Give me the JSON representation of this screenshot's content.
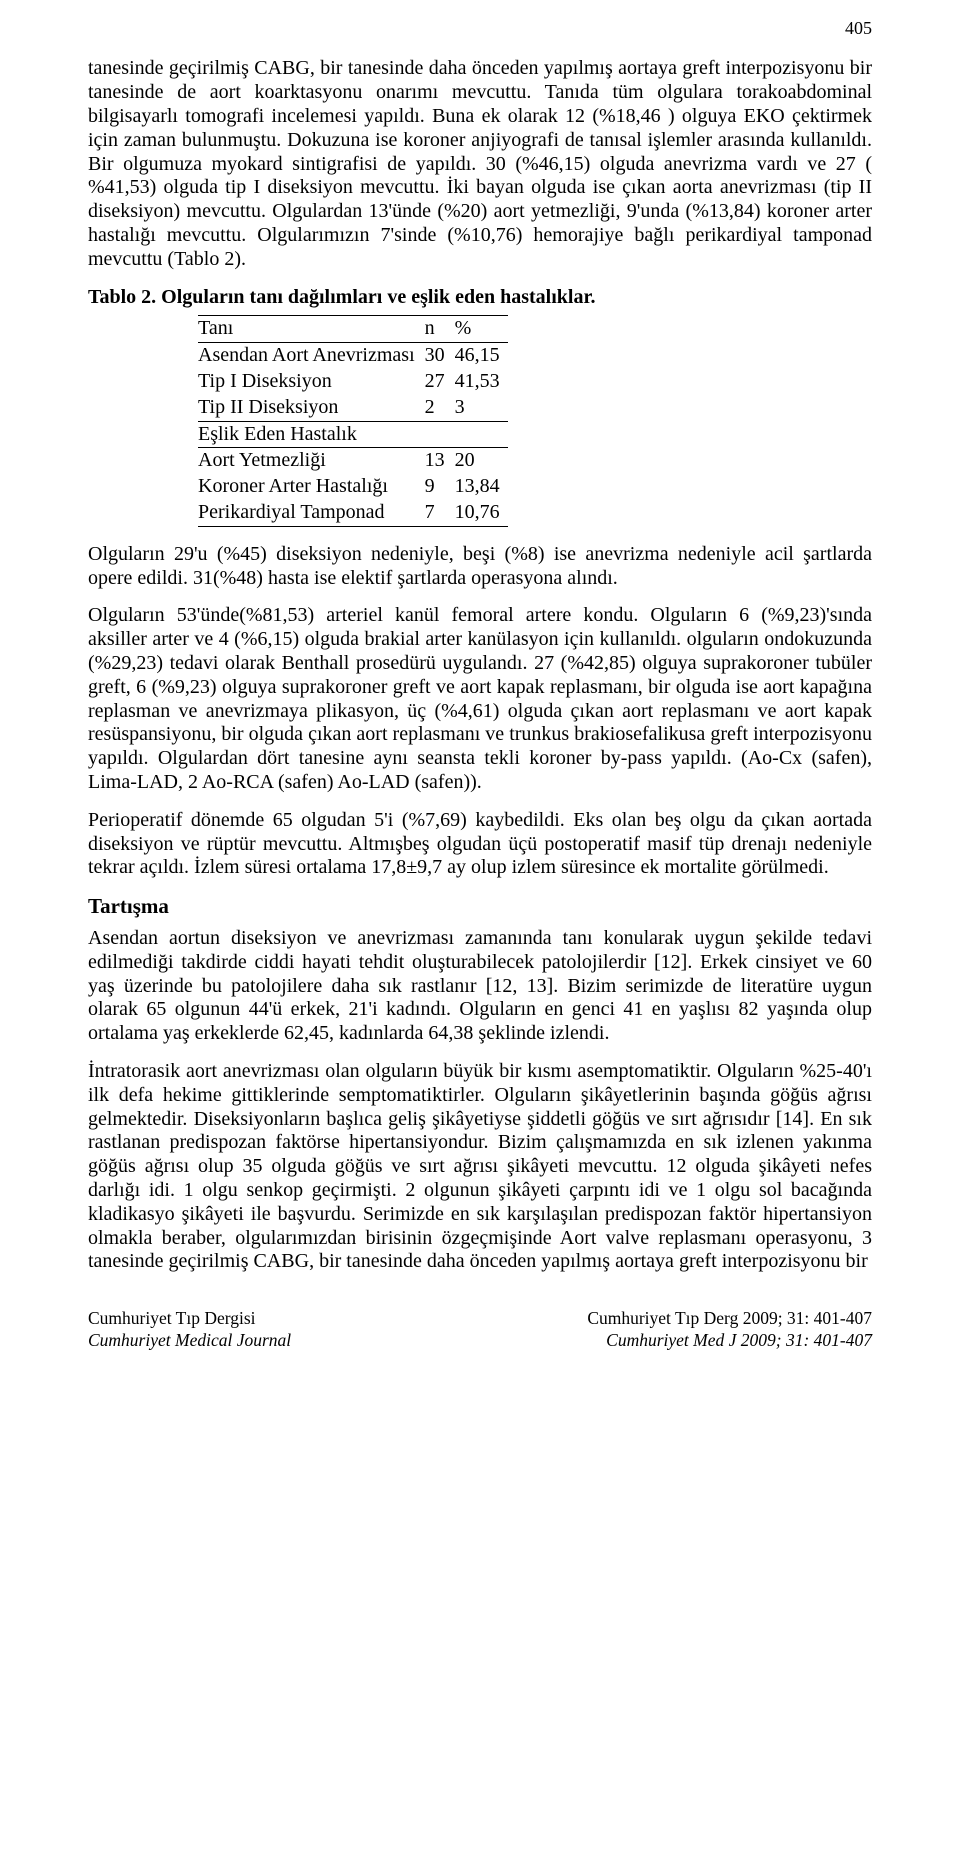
{
  "page_number": "405",
  "paragraphs": {
    "p1": "tanesinde geçirilmiş CABG, bir tanesinde daha önceden yapılmış aortaya greft interpozisyonu bir tanesinde de aort koarktasyonu onarımı mevcuttu. Tanıda tüm olgulara torakoabdominal bilgisayarlı tomografi incelemesi yapıldı. Buna ek olarak 12 (%18,46 ) olguya EKO çektirmek için zaman bulunmuştu. Dokuzuna ise koroner anjiyografi de tanısal işlemler arasında kullanıldı. Bir olgumuza myokard sintigrafisi de yapıldı. 30 (%46,15) olguda anevrizma vardı ve 27 ( %41,53) olguda tip I diseksiyon mevcuttu. İki bayan olguda ise çıkan aorta anevrizması (tip II diseksiyon) mevcuttu. Olgulardan 13'ünde (%20) aort yetmezliği, 9'unda (%13,84) koroner arter hastalığı mevcuttu. Olgularımızın 7'sinde (%10,76) hemorajiye bağlı perikardiyal tamponad mevcuttu (Tablo 2).",
    "p2": "Olguların 29'u (%45) diseksiyon nedeniyle, beşi (%8) ise anevrizma nedeniyle acil şartlarda opere edildi. 31(%48) hasta ise elektif şartlarda operasyona alındı.",
    "p3": "Olguların 53'ünde(%81,53) arteriel kanül femoral artere kondu. Olguların 6 (%9,23)'sında aksiller arter ve 4 (%6,15) olguda brakial arter kanülasyon için kullanıldı. olguların ondokuzunda (%29,23) tedavi olarak Benthall prosedürü uygulandı. 27 (%42,85) olguya suprakoroner tubüler greft, 6 (%9,23) olguya suprakoroner greft ve aort kapak replasmanı, bir olguda ise aort kapağına replasman ve anevrizmaya plikasyon, üç (%4,61) olguda çıkan aort replasmanı ve aort kapak resüspansiyonu, bir olguda çıkan aort replasmanı ve trunkus brakiosefalikusa greft interpozisyonu yapıldı. Olgulardan dört tanesine aynı seansta tekli koroner by-pass yapıldı. (Ao-Cx (safen), Lima-LAD, 2 Ao-RCA (safen) Ao-LAD (safen)).",
    "p4": "Perioperatif dönemde 65 olgudan 5'i (%7,69) kaybedildi. Eks olan beş olgu da çıkan aortada diseksiyon ve rüptür mevcuttu. Altmışbeş olgudan üçü postoperatif masif tüp drenajı nedeniyle tekrar açıldı. İzlem süresi ortalama 17,8±9,7 ay olup izlem süresince ek mortalite görülmedi.",
    "p5": "Asendan aortun diseksiyon ve anevrizması zamanında tanı konularak uygun şekilde tedavi edilmediği takdirde ciddi hayati tehdit oluşturabilecek patolojilerdir [12]. Erkek cinsiyet ve 60 yaş üzerinde bu patolojilere daha sık rastlanır [12, 13]. Bizim serimizde de literatüre uygun olarak 65 olgunun 44'ü erkek, 21'i kadındı. Olguların en genci 41 en yaşlısı 82 yaşında olup ortalama yaş erkeklerde 62,45, kadınlarda 64,38 şeklinde izlendi.",
    "p6": "İntratorasik aort anevrizması olan olguların büyük bir kısmı asemptomatiktir. Olguların %25-40'ı ilk defa hekime gittiklerinde semptomatiktirler. Olguların şikâyetlerinin başında göğüs ağrısı gelmektedir. Diseksiyonların başlıca geliş şikâyetiyse şiddetli göğüs ve sırt ağrısıdır [14]. En sık rastlanan predispozan faktörse hipertansiyondur. Bizim çalışmamızda en sık izlenen yakınma göğüs ağrısı olup 35 olguda göğüs ve sırt ağrısı şikâyeti mevcuttu. 12 olguda şikâyeti nefes darlığı idi. 1 olgu senkop geçirmişti. 2 olgunun şikâyeti çarpıntı idi ve 1 olgu sol bacağında kladikasyo şikâyeti ile başvurdu. Serimizde en sık karşılaşılan predispozan faktör hipertansiyon olmakla beraber, olgularımızdan birisinin özgeçmişinde Aort valve replasmanı operasyonu, 3 tanesinde geçirilmiş CABG, bir tanesinde daha önceden yapılmış aortaya greft interpozisyonu bir"
  },
  "table": {
    "caption": "Tablo 2. Olguların tanı dağılımları ve eşlik eden hastalıklar.",
    "columns": [
      "Tanı",
      "n",
      "%"
    ],
    "section2_header": "Eşlik Eden Hastalık",
    "rows1": [
      {
        "label": "Asendan Aort Anevrizması",
        "n": "30",
        "pct": "46,15"
      },
      {
        "label": "Tip I Diseksiyon",
        "n": "27",
        "pct": "41,53"
      },
      {
        "label": "Tip II Diseksiyon",
        "n": "2",
        "pct": "3"
      }
    ],
    "rows2": [
      {
        "label": "Aort Yetmezliği",
        "n": "13",
        "pct": "20"
      },
      {
        "label": "Koroner Arter Hastalığı",
        "n": "9",
        "pct": "13,84"
      },
      {
        "label": "Perikardiyal Tamponad",
        "n": "7",
        "pct": "10,76"
      }
    ]
  },
  "section_heading": "Tartışma",
  "footer": {
    "left_line1": "Cumhuriyet Tıp Dergisi",
    "left_line2": "Cumhuriyet Medical Journal",
    "right_line1": "Cumhuriyet Tıp Derg 2009; 31: 401-407",
    "right_line2": "Cumhuriyet Med J 2009; 31: 401-407"
  }
}
